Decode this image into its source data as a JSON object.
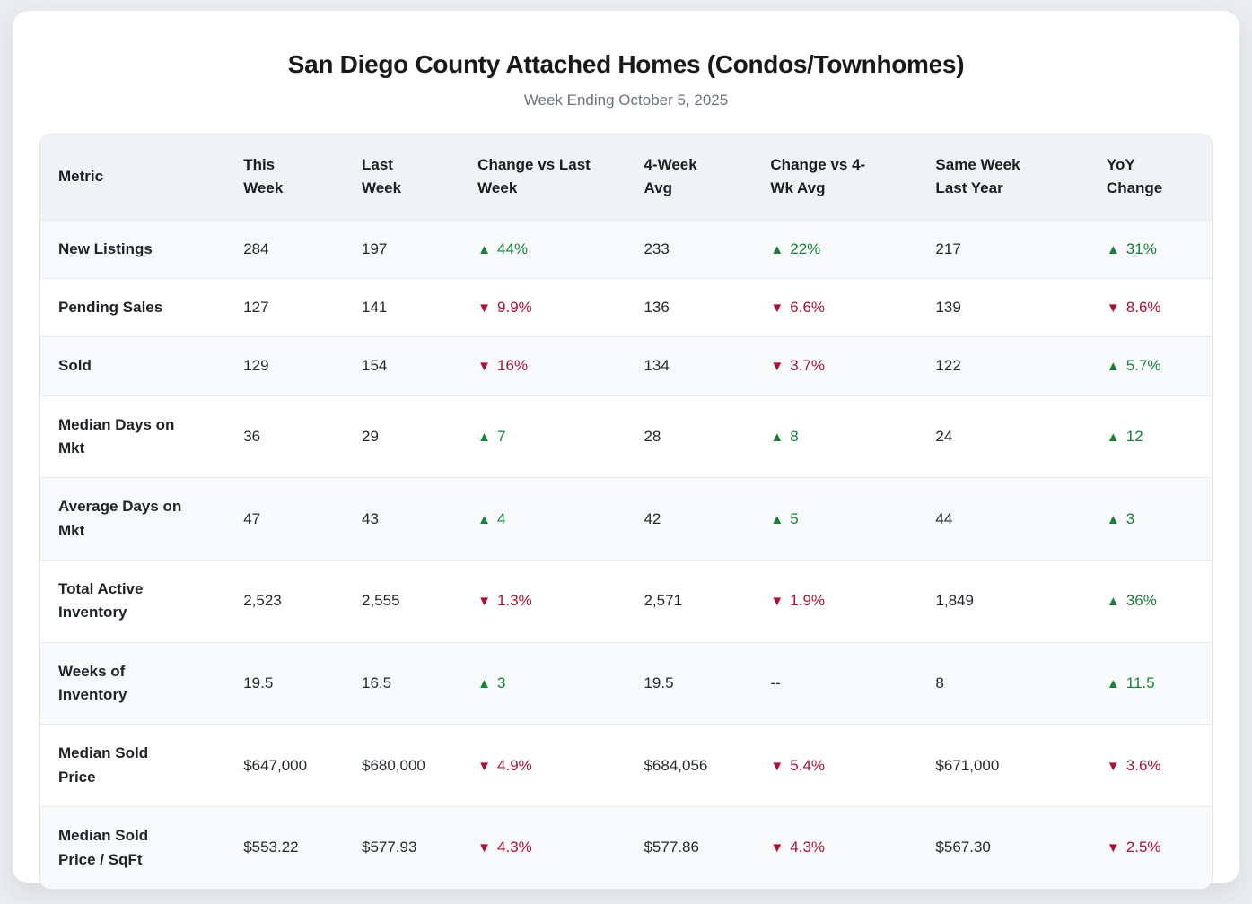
{
  "page": {
    "title": "San Diego County Attached Homes (Condos/Townhomes)",
    "subtitle": "Week Ending October 5, 2025"
  },
  "colors": {
    "up": "#178139",
    "down": "#a81335"
  },
  "icons": {
    "up_arrow": "▲",
    "down_arrow": "▼"
  },
  "table": {
    "columns": [
      {
        "key": "metric",
        "label": "Metric"
      },
      {
        "key": "this_week",
        "label": "This\nWeek"
      },
      {
        "key": "last_week",
        "label": "Last\nWeek"
      },
      {
        "key": "change_vs_last_week",
        "label": "Change vs Last\nWeek"
      },
      {
        "key": "four_week_avg",
        "label": "4-Week\nAvg"
      },
      {
        "key": "change_vs_4wk_avg",
        "label": "Change vs 4-\nWk Avg"
      },
      {
        "key": "same_week_last_year",
        "label": "Same Week\nLast Year"
      },
      {
        "key": "yoy_change",
        "label": "YoY\nChange"
      }
    ],
    "rows": [
      {
        "metric": "New Listings",
        "this_week": "284",
        "last_week": "197",
        "change_vs_last_week": {
          "dir": "up",
          "text": "44%"
        },
        "four_week_avg": "233",
        "change_vs_4wk_avg": {
          "dir": "up",
          "text": "22%"
        },
        "same_week_last_year": "217",
        "yoy_change": {
          "dir": "up",
          "text": "31%"
        }
      },
      {
        "metric": "Pending Sales",
        "this_week": "127",
        "last_week": "141",
        "change_vs_last_week": {
          "dir": "down",
          "text": "9.9%"
        },
        "four_week_avg": "136",
        "change_vs_4wk_avg": {
          "dir": "down",
          "text": "6.6%"
        },
        "same_week_last_year": "139",
        "yoy_change": {
          "dir": "down",
          "text": "8.6%"
        }
      },
      {
        "metric": "Sold",
        "this_week": "129",
        "last_week": "154",
        "change_vs_last_week": {
          "dir": "down",
          "text": "16%"
        },
        "four_week_avg": "134",
        "change_vs_4wk_avg": {
          "dir": "down",
          "text": "3.7%"
        },
        "same_week_last_year": "122",
        "yoy_change": {
          "dir": "up",
          "text": "5.7%"
        }
      },
      {
        "metric": "Median Days on\nMkt",
        "this_week": "36",
        "last_week": "29",
        "change_vs_last_week": {
          "dir": "up",
          "text": "7"
        },
        "four_week_avg": "28",
        "change_vs_4wk_avg": {
          "dir": "up",
          "text": "8"
        },
        "same_week_last_year": "24",
        "yoy_change": {
          "dir": "up",
          "text": "12"
        }
      },
      {
        "metric": "Average Days on\nMkt",
        "this_week": "47",
        "last_week": "43",
        "change_vs_last_week": {
          "dir": "up",
          "text": "4"
        },
        "four_week_avg": "42",
        "change_vs_4wk_avg": {
          "dir": "up",
          "text": "5"
        },
        "same_week_last_year": "44",
        "yoy_change": {
          "dir": "up",
          "text": "3"
        }
      },
      {
        "metric": "Total Active\nInventory",
        "this_week": "2,523",
        "last_week": "2,555",
        "change_vs_last_week": {
          "dir": "down",
          "text": "1.3%"
        },
        "four_week_avg": "2,571",
        "change_vs_4wk_avg": {
          "dir": "down",
          "text": "1.9%"
        },
        "same_week_last_year": "1,849",
        "yoy_change": {
          "dir": "up",
          "text": "36%"
        }
      },
      {
        "metric": "Weeks of\nInventory",
        "this_week": "19.5",
        "last_week": "16.5",
        "change_vs_last_week": {
          "dir": "up",
          "text": "3"
        },
        "four_week_avg": "19.5",
        "change_vs_4wk_avg": {
          "dir": "none",
          "text": "--"
        },
        "same_week_last_year": "8",
        "yoy_change": {
          "dir": "up",
          "text": "11.5"
        }
      },
      {
        "metric": "Median Sold\nPrice",
        "this_week": "$647,000",
        "last_week": "$680,000",
        "change_vs_last_week": {
          "dir": "down",
          "text": "4.9%"
        },
        "four_week_avg": "$684,056",
        "change_vs_4wk_avg": {
          "dir": "down",
          "text": "5.4%"
        },
        "same_week_last_year": "$671,000",
        "yoy_change": {
          "dir": "down",
          "text": "3.6%"
        }
      },
      {
        "metric": "Median Sold\nPrice / SqFt",
        "this_week": "$553.22",
        "last_week": "$577.93",
        "change_vs_last_week": {
          "dir": "down",
          "text": "4.3%"
        },
        "four_week_avg": "$577.86",
        "change_vs_4wk_avg": {
          "dir": "down",
          "text": "4.3%"
        },
        "same_week_last_year": "$567.30",
        "yoy_change": {
          "dir": "down",
          "text": "2.5%"
        }
      }
    ]
  }
}
